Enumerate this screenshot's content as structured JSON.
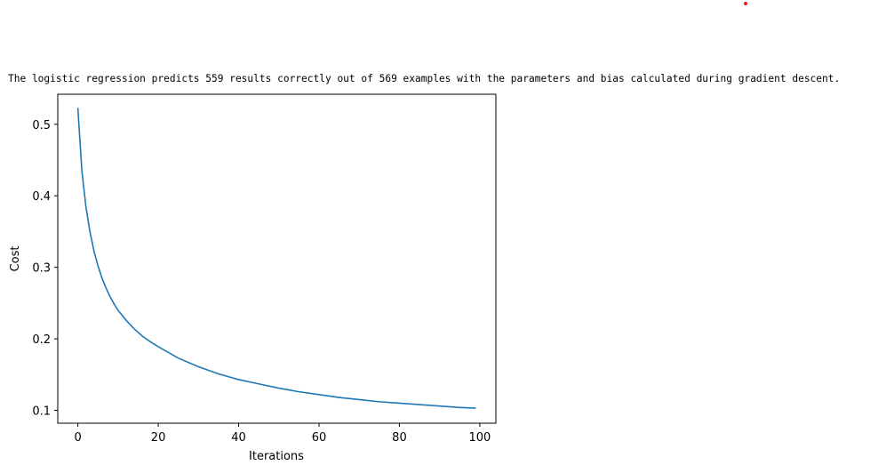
{
  "output": {
    "message": "The logistic regression predicts 559 results correctly out of 569 examples with the parameters and bias calculated during gradient descent."
  },
  "colors": {
    "line": "#1f77b4",
    "marker": "#e8221a"
  },
  "chart_data": {
    "type": "line",
    "title": "",
    "xlabel": "Iterations",
    "ylabel": "Cost",
    "xlim": [
      -5,
      104
    ],
    "ylim": [
      0.082,
      0.542
    ],
    "xticks": [
      0,
      20,
      40,
      60,
      80,
      100
    ],
    "xtick_labels": [
      "0",
      "20",
      "40",
      "60",
      "80",
      "100"
    ],
    "yticks": [
      0.1,
      0.2,
      0.3,
      0.4,
      0.5
    ],
    "ytick_labels": [
      "0.1",
      "0.2",
      "0.3",
      "0.4",
      "0.5"
    ],
    "grid": false,
    "series": [
      {
        "x": [
          0,
          1,
          2,
          3,
          4,
          5,
          6,
          7,
          8,
          9,
          10,
          12,
          14,
          16,
          18,
          20,
          25,
          30,
          35,
          40,
          45,
          50,
          55,
          60,
          65,
          70,
          75,
          80,
          85,
          90,
          95,
          99
        ],
        "y": [
          0.523,
          0.435,
          0.385,
          0.35,
          0.323,
          0.302,
          0.285,
          0.271,
          0.259,
          0.249,
          0.24,
          0.226,
          0.214,
          0.204,
          0.196,
          0.189,
          0.173,
          0.161,
          0.151,
          0.143,
          0.137,
          0.131,
          0.126,
          0.122,
          0.118,
          0.115,
          0.112,
          0.11,
          0.108,
          0.106,
          0.104,
          0.103
        ]
      }
    ]
  }
}
